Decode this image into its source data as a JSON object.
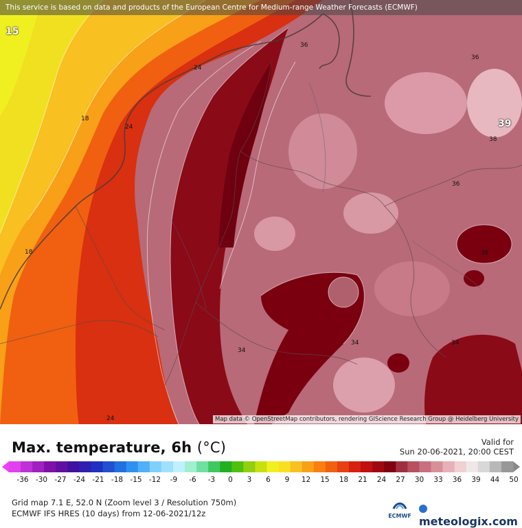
{
  "banner": "This service is based on data and products of the European Centre for Medium-range Weather Forecasts (ECMWF)",
  "attribution": "Map data © OpenStreetMap contributors, rendering GIScience Research Group @ Heidelberg University",
  "contour_labels": {
    "l15": "15",
    "l18a": "18",
    "l24a": "24",
    "l24b": "24",
    "l18b": "18",
    "l24c": "24",
    "l36a": "36",
    "l39": "39",
    "l38": "38",
    "l36b": "36",
    "l36c": "36",
    "l34a": "34",
    "l34b": "34",
    "l34c": "34",
    "l36d": "36"
  },
  "title": "Max. temperature, 6h",
  "unit": "(°C)",
  "valid_label": "Valid for",
  "valid_date": "Sun 20-06-2021, 20:00 CEST",
  "scale_ticks": [
    "-36",
    "-30",
    "-27",
    "-24",
    "-21",
    "-18",
    "-15",
    "-12",
    "-9",
    "-6",
    "-3",
    "0",
    "3",
    "6",
    "9",
    "12",
    "15",
    "18",
    "21",
    "24",
    "27",
    "30",
    "33",
    "36",
    "39",
    "44",
    "50"
  ],
  "scale_colors": [
    "#e040f0",
    "#c030d8",
    "#a020c0",
    "#8010a8",
    "#6010a0",
    "#4010a0",
    "#3020b0",
    "#2030c0",
    "#2050d0",
    "#2070e0",
    "#3090f0",
    "#50b0f8",
    "#80d0ff",
    "#a0e0ff",
    "#c0f0ff",
    "#a0f0d0",
    "#70e0a0",
    "#40c860",
    "#20b020",
    "#50c010",
    "#90d010",
    "#c8e010",
    "#f0f020",
    "#f8e020",
    "#f8c020",
    "#f8a018",
    "#f88010",
    "#f06010",
    "#e84010",
    "#d82010",
    "#c01010",
    "#a00810",
    "#800010",
    "#a03040",
    "#b85060",
    "#c87080",
    "#d89098",
    "#e8b0b8",
    "#f0d0d0",
    "#f0e8e8",
    "#d8d8d8",
    "#b8b8b8",
    "#989898"
  ],
  "meta_line1": "Grid map 7.1 E, 52.0 N (Zoom level 3 / Resolution 750m)",
  "meta_line2": "ECMWF IFS HRES (10 days) from 12-06-2021/12z",
  "logo_ecmwf": "ECMWF",
  "logo_meteologix": "meteologix.com"
}
